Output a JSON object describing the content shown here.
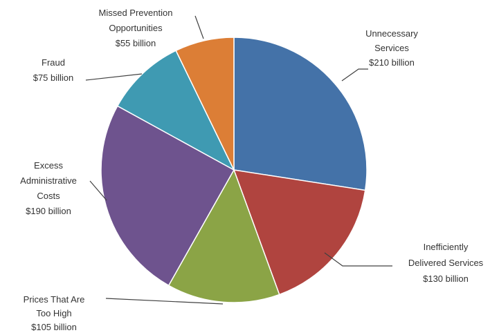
{
  "chart_data": {
    "type": "pie",
    "unit": "billion",
    "slices": [
      {
        "label": [
          "Unnecessary",
          "Services",
          "$210 billion"
        ],
        "value": 210,
        "color": "#4472a8"
      },
      {
        "label": [
          "Inefficiently",
          "Delivered Services",
          "$130 billion"
        ],
        "value": 130,
        "color": "#b0443f"
      },
      {
        "label": [
          "Prices That Are",
          "Too High",
          "$105 billion"
        ],
        "value": 105,
        "color": "#8ba446"
      },
      {
        "label": [
          "Excess",
          "Administrative",
          "Costs",
          "$190 billion"
        ],
        "value": 190,
        "color": "#6e538e"
      },
      {
        "label": [
          "Fraud",
          "$75 billion"
        ],
        "value": 75,
        "color": "#3f9ab2"
      },
      {
        "label": [
          "Missed Prevention",
          "Opportunities",
          "$55 billion"
        ],
        "value": 55,
        "color": "#dc7e36"
      }
    ]
  }
}
